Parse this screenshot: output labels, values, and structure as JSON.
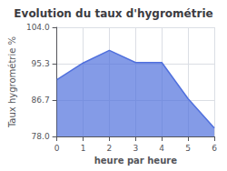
{
  "chart_data": {
    "type": "area",
    "title": "Evolution du taux d'hygrométrie",
    "xlabel": "heure par heure",
    "ylabel": "Taux hygrométrie %",
    "x": [
      0,
      1,
      2,
      3,
      4,
      5,
      6
    ],
    "values": [
      91.5,
      95.5,
      98.5,
      95.6,
      95.6,
      87.0,
      80.0
    ],
    "xlim": [
      0,
      6
    ],
    "ylim": [
      78.0,
      104.0
    ],
    "xticks": [
      0,
      1,
      2,
      3,
      4,
      5,
      6
    ],
    "yticks": [
      {
        "value": 78.0,
        "label": "78.0"
      },
      86.7,
      95.3,
      {
        "value": 104.0,
        "label": "104.0"
      }
    ],
    "grid": true
  }
}
